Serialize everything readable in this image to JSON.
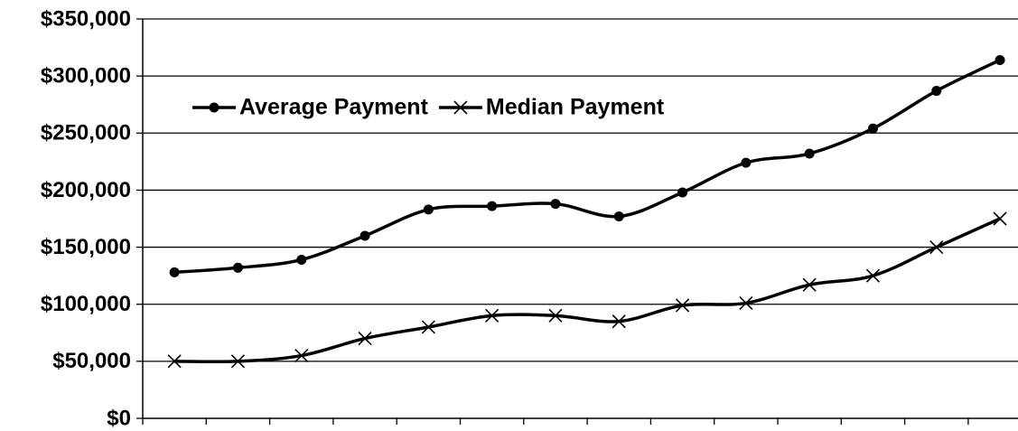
{
  "chart_data": {
    "type": "line",
    "categories": [
      null,
      null,
      null,
      null,
      null,
      null,
      null,
      null,
      null,
      null,
      null,
      null,
      null,
      null
    ],
    "series": [
      {
        "name": "Average Payment",
        "color": "#000000",
        "marker": "circle",
        "values": [
          128000,
          132000,
          139000,
          160000,
          183000,
          186000,
          188000,
          177000,
          198000,
          224000,
          232000,
          254000,
          287000,
          314000
        ]
      },
      {
        "name": "Median Payment",
        "color": "#000000",
        "marker": "x",
        "values": [
          50000,
          50000,
          55000,
          70000,
          80000,
          90000,
          90000,
          85000,
          99000,
          101000,
          117000,
          125000,
          150000,
          175000
        ]
      }
    ],
    "ylim": [
      0,
      350000
    ],
    "yticks": [
      {
        "value": 0,
        "label": "$0"
      },
      {
        "value": 50000,
        "label": "$50,000"
      },
      {
        "value": 100000,
        "label": "$100,000"
      },
      {
        "value": 150000,
        "label": "$150,000"
      },
      {
        "value": 200000,
        "label": "$200,000"
      },
      {
        "value": 250000,
        "label": "$250,000"
      },
      {
        "value": 300000,
        "label": "$300,000"
      },
      {
        "value": 350000,
        "label": "$350,000"
      }
    ],
    "grid": true
  }
}
